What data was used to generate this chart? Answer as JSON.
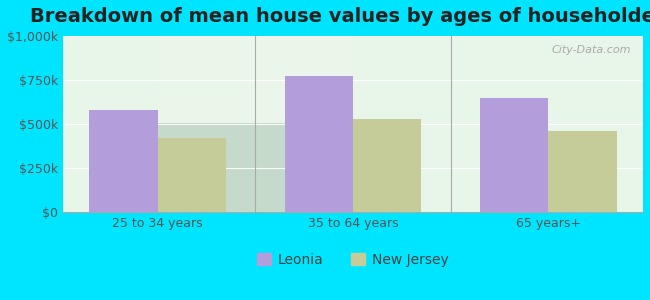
{
  "title": "Breakdown of mean house values by ages of householders",
  "categories": [
    "25 to 34 years",
    "35 to 64 years",
    "65 years+"
  ],
  "leonia_values": [
    580000,
    775000,
    650000
  ],
  "nj_values": [
    420000,
    530000,
    460000
  ],
  "leonia_color": "#b39ddb",
  "nj_color": "#c5cc9a",
  "background_color": "#00e5ff",
  "plot_bg_color": "#e8f5e9",
  "ylim": [
    0,
    1000000
  ],
  "yticks": [
    0,
    250000,
    500000,
    750000,
    1000000
  ],
  "ytick_labels": [
    "$0",
    "$250k",
    "$500k",
    "$750k",
    "$1,000k"
  ],
  "legend_leonia": "Leonia",
  "legend_nj": "New Jersey",
  "bar_width": 0.35,
  "title_fontsize": 14,
  "tick_fontsize": 9,
  "legend_fontsize": 10
}
